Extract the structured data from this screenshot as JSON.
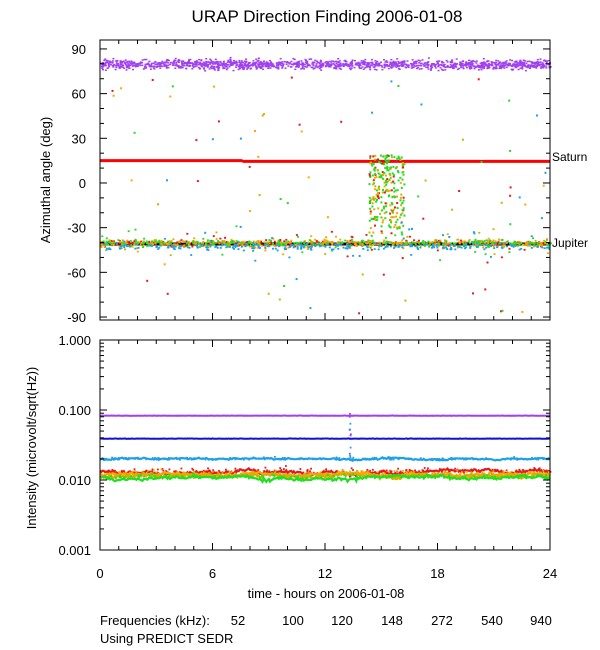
{
  "title": "URAP Direction Finding  2006-01-08",
  "colors": {
    "c52": "#e41a1c",
    "c100": "#ffa500",
    "c120": "#d4b000",
    "c148": "#22dd22",
    "c272": "#1ea0e8",
    "c540": "#1010d0",
    "c940": "#a040f0",
    "saturn": "#ff0000",
    "jupiter": "#000000"
  },
  "footer": {
    "frequencies_label": "Frequencies (kHz):",
    "source_note": "Using PREDICT SEDR"
  },
  "chart_data": [
    {
      "type": "scatter",
      "ylabel": "Azimuthal angle (deg)",
      "xlim": [
        0,
        24
      ],
      "ylim": [
        -92,
        96
      ],
      "y_ticks": [
        90,
        60,
        30,
        0,
        -30,
        -60,
        -90
      ],
      "y_tick_labels": [
        "90",
        "60",
        "30",
        "0",
        "-30",
        "-60",
        "-90"
      ],
      "reference_lines": [
        {
          "name": "Saturn",
          "segments": [
            [
              0,
              7.6,
              15
            ],
            [
              7.6,
              24,
              14.5
            ]
          ]
        },
        {
          "name": "Jupiter",
          "segments": [
            [
              0,
              24,
              -41
            ]
          ]
        }
      ],
      "series": [
        {
          "freq_khz": 940,
          "approx_level_deg": 80
        },
        {
          "freq_khz": 52,
          "approx_level_deg": -40
        },
        {
          "freq_khz": 100,
          "approx_level_deg": -40
        },
        {
          "freq_khz": 120,
          "approx_level_deg": -40
        },
        {
          "freq_khz": 148,
          "approx_level_deg": -40
        },
        {
          "freq_khz": 272,
          "approx_level_deg": -42
        }
      ],
      "event": {
        "x_range": [
          14.3,
          16.2
        ],
        "y_range": [
          -35,
          20
        ]
      }
    },
    {
      "type": "line",
      "ylabel": "Intensity (microvolt/sqrt(Hz))",
      "xlabel": "time - hours on 2006-01-08",
      "xlim": [
        0,
        24
      ],
      "y_scale": "log",
      "ylim": [
        0.001,
        1.0
      ],
      "x_ticks": [
        0,
        6,
        12,
        18,
        24
      ],
      "x_tick_labels": [
        "0",
        "6",
        "12",
        "18",
        "24"
      ],
      "y_ticks": [
        1.0,
        0.1,
        0.01,
        0.001
      ],
      "y_tick_labels": [
        "1.000",
        "0.100",
        "0.010",
        "0.001"
      ],
      "series": [
        {
          "name": "940",
          "freq_khz": 940,
          "level": 0.083
        },
        {
          "name": "540",
          "freq_khz": 540,
          "level": 0.039
        },
        {
          "name": "272",
          "freq_khz": 272,
          "level": 0.02
        },
        {
          "name": "52",
          "freq_khz": 52,
          "level": 0.013
        },
        {
          "name": "100",
          "freq_khz": 100,
          "level": 0.012
        },
        {
          "name": "120",
          "freq_khz": 120,
          "level": 0.0115
        },
        {
          "name": "148",
          "freq_khz": 148,
          "level": 0.0108
        }
      ]
    }
  ]
}
